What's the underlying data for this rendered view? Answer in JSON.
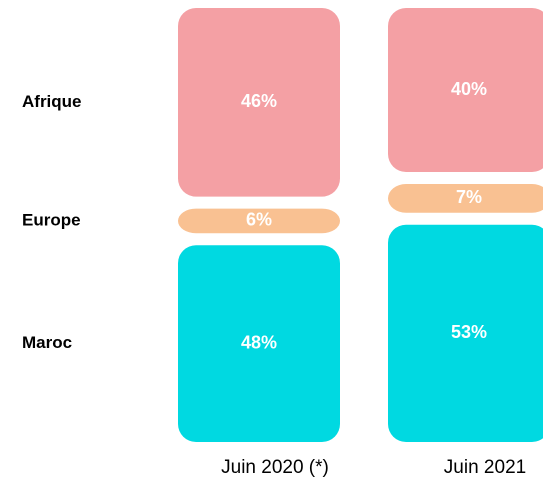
{
  "chart_data": {
    "type": "bar",
    "stacked": true,
    "categories": [
      "Juin 2020 (*)",
      "Juin 2021"
    ],
    "series": [
      {
        "name": "Afrique",
        "color": "#f4a0a4",
        "values": [
          46,
          40
        ],
        "value_labels": [
          "46%",
          "40%"
        ]
      },
      {
        "name": "Europe",
        "color": "#f9c192",
        "values": [
          6,
          7
        ],
        "value_labels": [
          "6%",
          "7%"
        ]
      },
      {
        "name": "Maroc",
        "color": "#00d9e1",
        "values": [
          48,
          53
        ],
        "value_labels": [
          "48%",
          "53%"
        ]
      }
    ]
  }
}
